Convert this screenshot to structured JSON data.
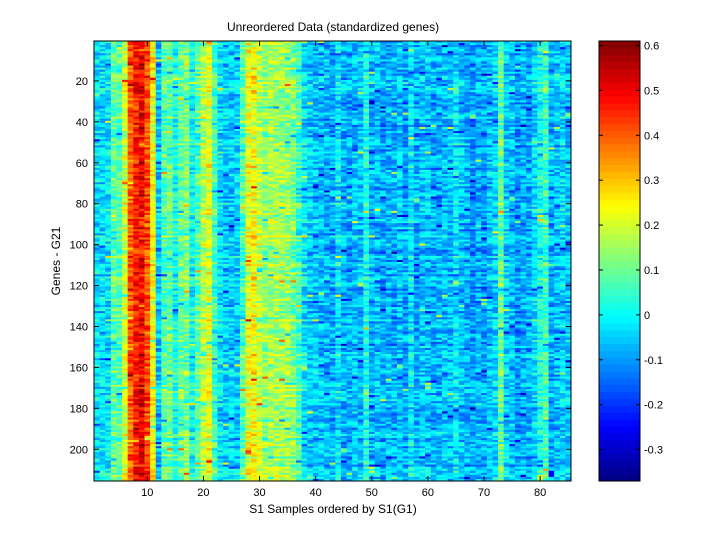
{
  "chart_data": {
    "type": "heatmap",
    "title": "Unreordered Data (standardized genes)",
    "xlabel": "S1 Samples ordered by S1(G1)",
    "ylabel": "Genes - G21",
    "n_cols": 85,
    "n_rows": 215,
    "xlim": [
      0.5,
      85.5
    ],
    "ylim": [
      0.5,
      215.5
    ],
    "x_ticks": [
      10,
      20,
      30,
      40,
      50,
      60,
      70,
      80
    ],
    "y_ticks": [
      20,
      40,
      60,
      80,
      100,
      120,
      140,
      160,
      180,
      200
    ],
    "colorbar": {
      "colormap": "jet",
      "clim": [
        -0.37,
        0.61
      ],
      "ticks": [
        -0.3,
        -0.2,
        -0.1,
        0,
        0.1,
        0.2,
        0.3,
        0.4,
        0.5,
        0.6
      ]
    },
    "column_profile_mean": [
      -0.02,
      -0.03,
      -0.02,
      0.09,
      0.08,
      0.2,
      0.4,
      0.46,
      0.5,
      0.42,
      0.24,
      -0.06,
      0.08,
      0.1,
      0.02,
      0.1,
      0.12,
      0.0,
      0.08,
      0.18,
      0.22,
      0.06,
      -0.02,
      -0.05,
      -0.05,
      -0.04,
      0.08,
      0.22,
      0.24,
      0.18,
      0.14,
      0.16,
      0.16,
      0.15,
      0.14,
      0.12,
      0.06,
      -0.02,
      -0.05,
      -0.06,
      -0.06,
      -0.07,
      -0.08,
      -0.02,
      -0.08,
      -0.08,
      -0.06,
      -0.06,
      0.02,
      -0.08,
      -0.06,
      -0.09,
      -0.07,
      -0.08,
      -0.06,
      -0.09,
      -0.02,
      -0.08,
      -0.06,
      -0.06,
      -0.08,
      -0.08,
      -0.06,
      -0.06,
      -0.02,
      -0.06,
      -0.08,
      -0.1,
      -0.08,
      -0.1,
      -0.06,
      -0.04,
      0.1,
      -0.04,
      -0.06,
      -0.1,
      -0.08,
      -0.08,
      -0.04,
      0.02,
      0.06,
      -0.08,
      -0.06,
      -0.04,
      -0.06
    ]
  }
}
